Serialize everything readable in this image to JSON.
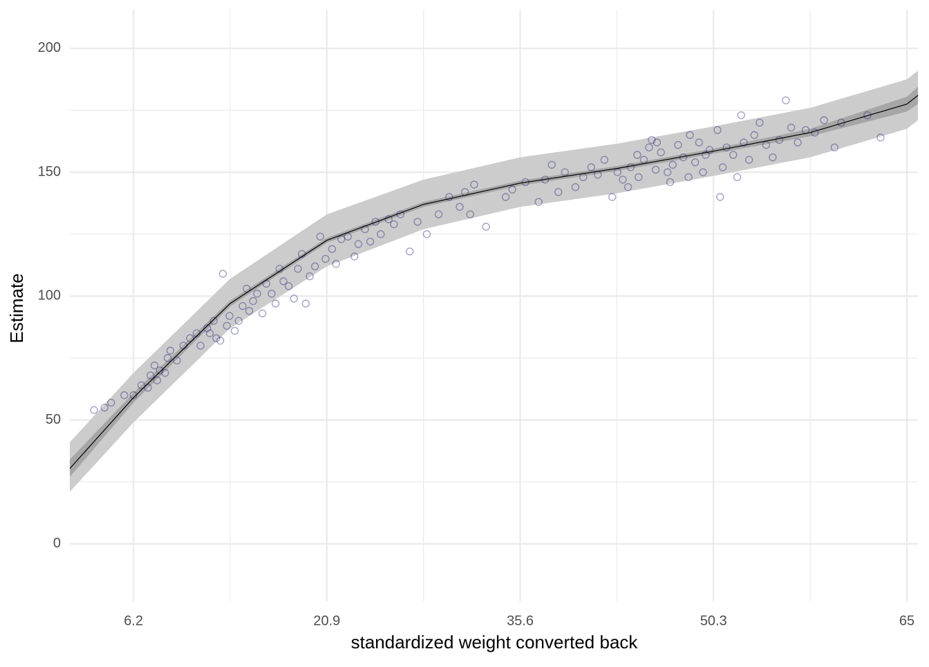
{
  "chart_data": {
    "type": "scatter",
    "x_label": "standardized weight converted back",
    "y_label": "Estimate",
    "xlim": [
      1.36,
      65.84
    ],
    "xticks": [
      6.2,
      20.9,
      35.6,
      50.3,
      65
    ],
    "ylim": [
      -23.2,
      215.6
    ],
    "yticks": [
      0,
      50,
      100,
      150,
      200
    ],
    "grid": true,
    "points": {
      "color": "#1a1a7a",
      "x": [
        3.2,
        4,
        4.5,
        5.5,
        6.2,
        6.8,
        7.3,
        7.5,
        7.8,
        8,
        8.2,
        8.6,
        8.8,
        9,
        9.5,
        10,
        10.5,
        11,
        11.3,
        11.8,
        12,
        12.3,
        12.5,
        12.8,
        13,
        13.3,
        13.5,
        13.9,
        14.2,
        14.5,
        14.8,
        15,
        15.3,
        15.6,
        16,
        16.3,
        16.7,
        17,
        17.3,
        17.6,
        18,
        18.4,
        18.7,
        19,
        19.3,
        19.6,
        20,
        20.4,
        20.8,
        21.3,
        21.6,
        22,
        22.5,
        23,
        23.3,
        23.8,
        24.2,
        24.6,
        25,
        25.6,
        26,
        26.5,
        27.2,
        27.8,
        28.5,
        29.4,
        30.2,
        31,
        31.4,
        31.8,
        32.1,
        33,
        34.5,
        35,
        36,
        37,
        37.5,
        38,
        38.5,
        39,
        39.8,
        40.4,
        41,
        41.5,
        42,
        42.6,
        43,
        43.4,
        44,
        44.6,
        45,
        45.4,
        45.9,
        46.3,
        46.8,
        47.2,
        47.6,
        48,
        48.4,
        48.9,
        49.2,
        49.7,
        50,
        50.6,
        51,
        51.3,
        51.8,
        52.1,
        52.6,
        53,
        53.4,
        53.8,
        54.3,
        54.8,
        55.3,
        55.8,
        56.2,
        56.7,
        57.3,
        58,
        58.7,
        59.5,
        60,
        62,
        63,
        45.6,
        47,
        48.5,
        50.8,
        52.4,
        49.5,
        44.5,
        46,
        43.8
      ],
      "y": [
        54,
        55,
        57,
        60,
        60,
        64,
        63,
        68,
        72,
        66,
        70,
        69,
        75,
        78,
        74,
        80,
        83,
        85,
        80,
        87,
        85,
        90,
        83,
        82,
        109,
        88,
        92,
        86,
        90,
        96,
        103,
        94,
        98,
        101,
        93,
        105,
        101,
        97,
        111,
        106,
        104,
        99,
        111,
        117,
        97,
        108,
        112,
        124,
        115,
        119,
        113,
        123,
        124,
        116,
        121,
        127,
        122,
        130,
        125,
        131,
        129,
        133,
        118,
        130,
        125,
        133,
        140,
        136,
        142,
        133,
        145,
        128,
        140,
        143,
        146,
        138,
        147,
        153,
        142,
        150,
        144,
        148,
        152,
        149,
        155,
        140,
        150,
        147,
        152,
        148,
        155,
        160,
        151,
        158,
        150,
        153,
        161,
        156,
        148,
        154,
        162,
        157,
        159,
        167,
        152,
        160,
        157,
        148,
        162,
        155,
        165,
        170,
        161,
        156,
        163,
        179,
        168,
        162,
        167,
        166,
        171,
        160,
        170,
        173,
        164,
        163,
        146,
        165,
        140,
        173,
        150,
        157,
        162,
        144
      ]
    },
    "fit": {
      "color": "#000000",
      "x": [
        1.36,
        6.2,
        13.55,
        20.9,
        28.25,
        35.6,
        42.95,
        50.3,
        57.65,
        65,
        65.84
      ],
      "y": [
        30.4,
        59,
        97,
        122.5,
        137,
        145.6,
        151.5,
        158.5,
        166,
        177.5,
        181
      ]
    },
    "prediction_interval": {
      "color": "#cccccc",
      "lower": [
        21,
        49,
        87,
        112,
        127,
        136,
        141.5,
        148.5,
        156,
        167.5,
        171
      ],
      "upper": [
        41,
        69,
        107,
        133,
        147,
        156,
        161.5,
        168.5,
        176,
        187.5,
        191
      ]
    },
    "mean_interval": {
      "color": "#a6a6a6",
      "lower": [
        27,
        57,
        95.8,
        121.5,
        136,
        144.6,
        150.5,
        157.5,
        164.5,
        174.5,
        177.5
      ],
      "upper": [
        34,
        61,
        98.2,
        123.5,
        138,
        146.6,
        152.5,
        159.5,
        167.5,
        180.5,
        184.5
      ]
    }
  }
}
